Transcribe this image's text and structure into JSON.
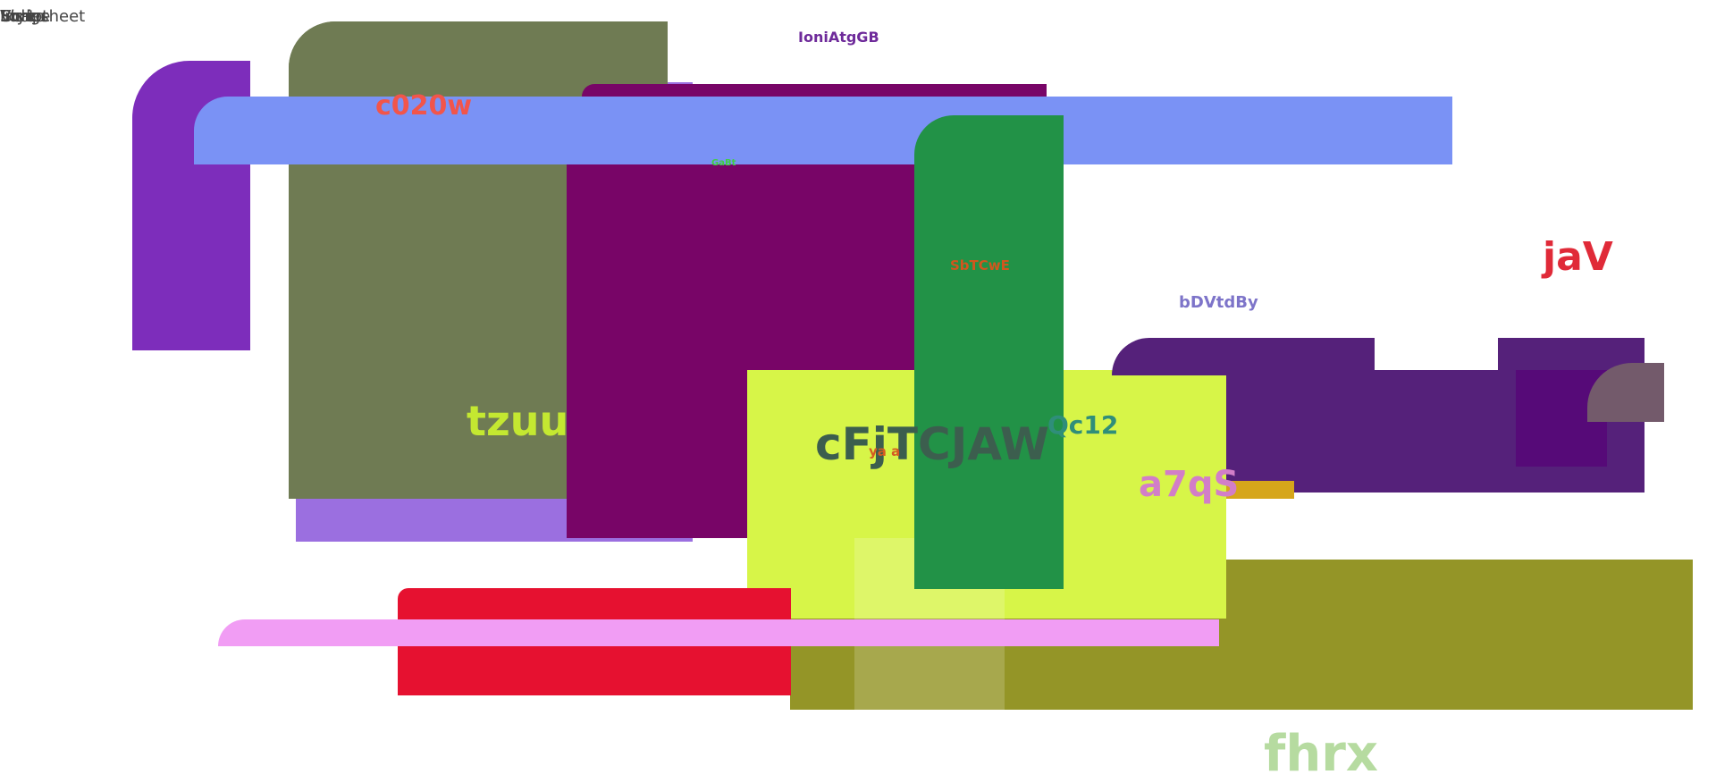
{
  "corner_labels": [
    "Stylesheet",
    "Script",
    "Image",
    "Font",
    "Video"
  ],
  "labels": {
    "ioni": "IoniAtgGB",
    "c020w": "c020w",
    "gabe": "GaBt",
    "sbtcwe": "SbTCwE",
    "jav": "jaV",
    "bdvtdby": "bDVtdBy",
    "tzuu": "tzuu",
    "cfj": "cFjTCJAW",
    "qc12": "Qc12",
    "ya": "ya a",
    "a7qs": "a7qS",
    "fhrx": "fhrx"
  },
  "colors": {
    "purple_left": "#7d2dbb",
    "olive_gray": "#6f7b53",
    "lavender": "#9b6fe0",
    "magenta": "#780567",
    "blue_bar": "#7a92f5",
    "green": "#229247",
    "lime": "#d7f548",
    "olive": "#949527",
    "red": "#e61130",
    "pink_bar": "#f19df4",
    "indigo": "#55217a",
    "indigo_inner": "#560a78",
    "mauve": "#735a6b",
    "gold": "#d6a61a"
  }
}
